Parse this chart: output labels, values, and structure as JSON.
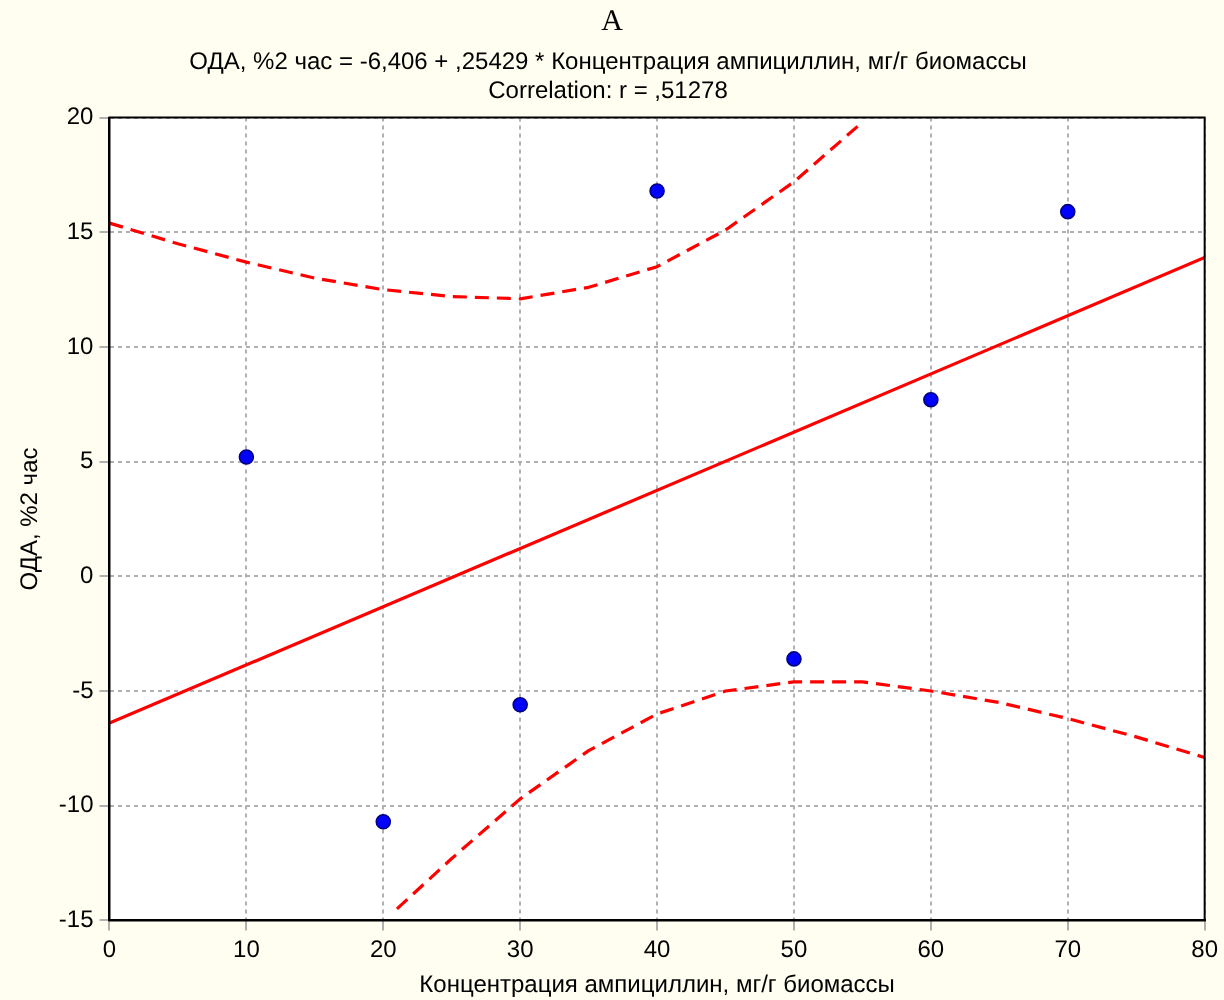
{
  "chart_data": {
    "type": "scatter",
    "title": "ОДА, %2 час = -6,406 + ,25429 * Концентрация ампициллин, мг/г биомассы",
    "subtitle": "Correlation: r = ,51278",
    "annotations": [
      "A"
    ],
    "xlabel": "Концентрация ампициллин, мг/г биомассы",
    "ylabel": "ОДА, %2 час",
    "xlim": [
      0,
      80
    ],
    "xticks": [
      0,
      10,
      20,
      30,
      40,
      50,
      60,
      70,
      80
    ],
    "ylim": [
      -15,
      20
    ],
    "yticks": [
      -15,
      -10,
      -5,
      0,
      5,
      10,
      15,
      20
    ],
    "grid": true,
    "legend": false,
    "series": [
      {
        "color": "#0000ff",
        "marker": "circle",
        "x": [
          10,
          20,
          30,
          40,
          50,
          60,
          70
        ],
        "values": [
          5.2,
          -10.7,
          -5.6,
          16.8,
          -3.6,
          7.7,
          15.9
        ]
      },
      {
        "type": "line",
        "color": "#ff0000",
        "line_style": "solid",
        "marker": "none",
        "x": [
          0,
          80
        ],
        "values": [
          -6.4,
          13.9
        ]
      },
      {
        "type": "line",
        "color": "#ff0000",
        "line_style": "dashed",
        "marker": "none",
        "x": [
          0,
          5,
          10,
          15,
          20,
          25,
          30,
          35,
          40,
          45,
          50,
          55
        ],
        "values": [
          15.4,
          14.5,
          13.7,
          13.0,
          12.5,
          12.2,
          12.1,
          12.6,
          13.5,
          15.1,
          17.2,
          19.8
        ]
      },
      {
        "type": "line",
        "color": "#ff0000",
        "line_style": "dashed",
        "marker": "none",
        "x": [
          21,
          25,
          30,
          35,
          40,
          45,
          50,
          55,
          60,
          65,
          70,
          75,
          80
        ],
        "values": [
          -14.5,
          -12.3,
          -9.7,
          -7.6,
          -6.0,
          -5.0,
          -4.6,
          -4.6,
          -5.0,
          -5.5,
          -6.2,
          -7.0,
          -7.9
        ]
      }
    ]
  }
}
